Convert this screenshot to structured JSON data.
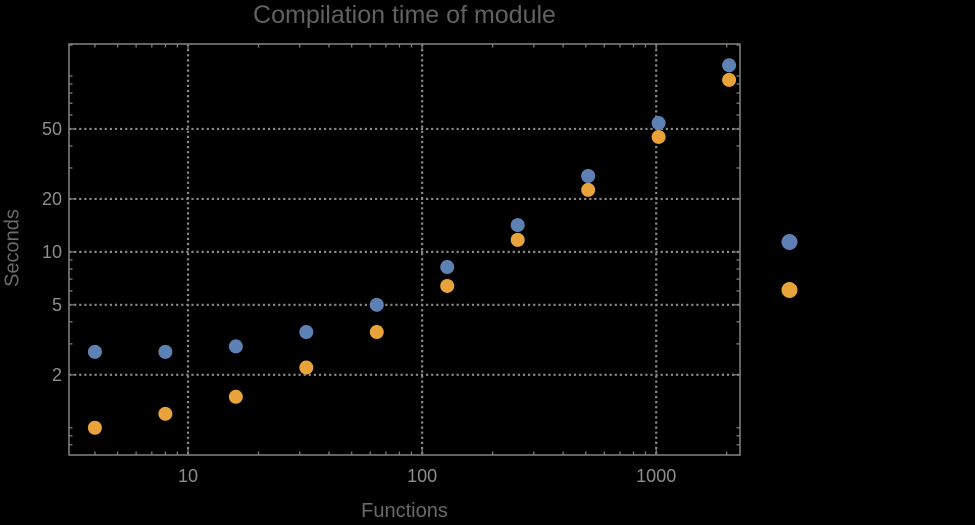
{
  "colors": {
    "background": "#000000",
    "frame": "#7c7c7c",
    "grid": "#8a8a8a",
    "tick_label": "#8d8d8d",
    "title_text": "#616161",
    "axis_label_text": "#696969",
    "series1": "#5E81B5",
    "series2": "#E8A33B"
  },
  "chart_data": {
    "type": "scatter",
    "title": "Compilation time of module",
    "xlabel": "Functions",
    "ylabel": "Seconds",
    "xscale": "log",
    "yscale": "log",
    "xlim": [
      3.1,
      2280
    ],
    "ylim": [
      0.7,
      152
    ],
    "grid": true,
    "legend_position": "right-outside",
    "x": [
      4,
      8,
      16,
      32,
      64,
      128,
      256,
      512,
      1024,
      2048
    ],
    "series": [
      {
        "name": "series-1",
        "color": "#5E81B5",
        "values": [
          2.7,
          2.7,
          2.9,
          3.5,
          5.0,
          8.2,
          14.2,
          27,
          54,
          115
        ]
      },
      {
        "name": "series-2",
        "color": "#E8A33B",
        "values": [
          1.0,
          1.2,
          1.5,
          2.2,
          3.5,
          6.4,
          11.7,
          22.5,
          45,
          95
        ]
      }
    ],
    "x_major_ticks": [
      10,
      100,
      1000
    ],
    "x_tick_labels": [
      "10",
      "100",
      "1000"
    ],
    "x_minor_ticks": [
      4,
      5,
      6,
      7,
      8,
      9,
      20,
      30,
      40,
      50,
      60,
      70,
      80,
      90,
      200,
      300,
      400,
      500,
      600,
      700,
      800,
      900,
      2000
    ],
    "y_major_ticks": [
      2,
      5,
      10,
      20,
      50
    ],
    "y_tick_labels": [
      "2",
      "5",
      "10",
      "20",
      "50"
    ],
    "y_minor_ticks": [
      0.8,
      0.9,
      1,
      3,
      4,
      6,
      7,
      8,
      9,
      30,
      40,
      60,
      70,
      80,
      90,
      100,
      150
    ]
  },
  "legend": {
    "markers": [
      {
        "series": "series-1",
        "color": "#5E81B5"
      },
      {
        "series": "series-2",
        "color": "#E8A33B"
      }
    ]
  }
}
